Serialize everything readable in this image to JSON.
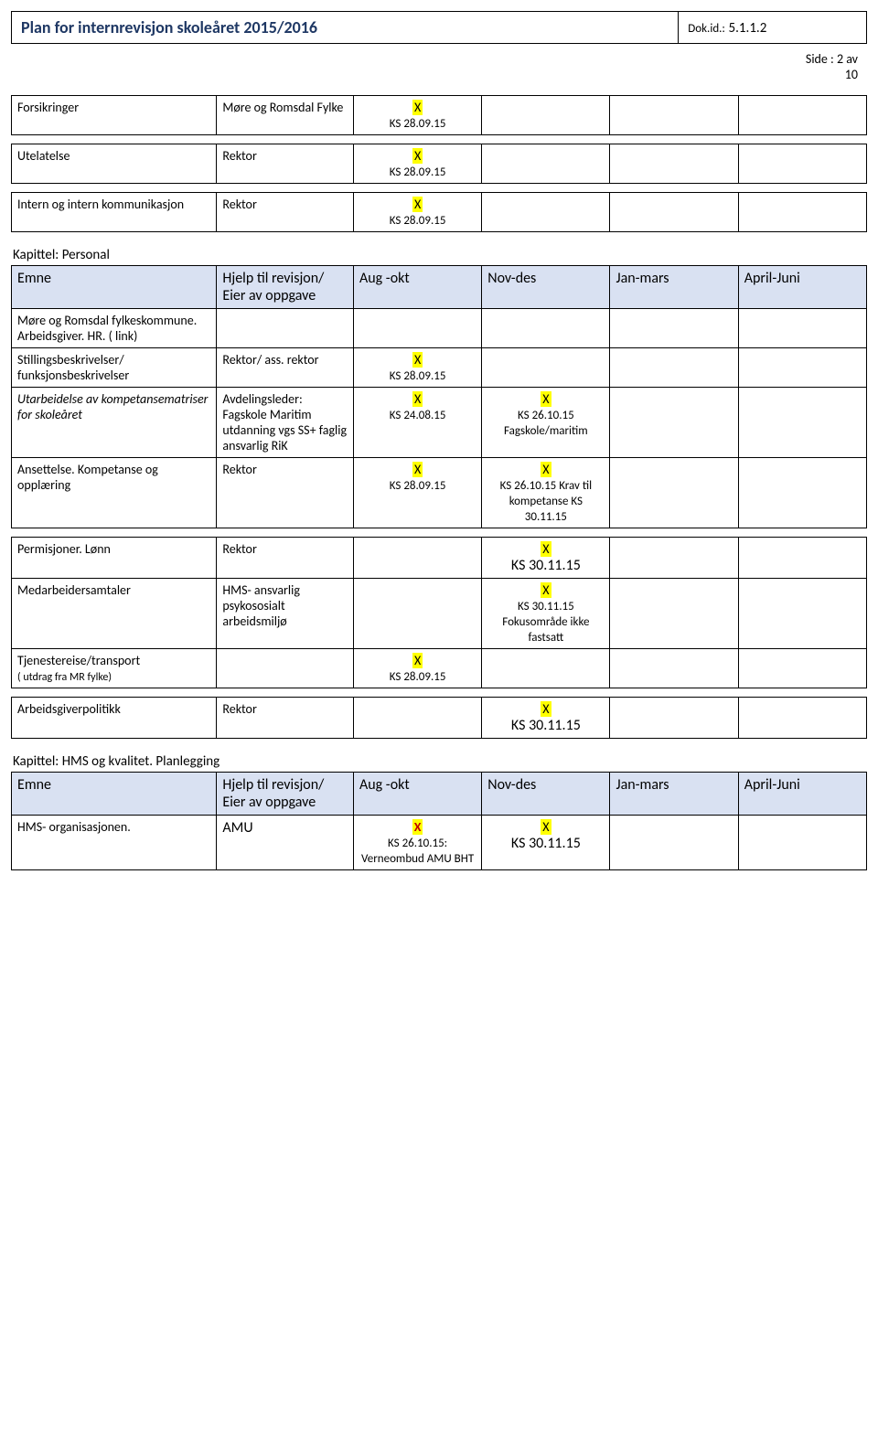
{
  "header": {
    "title": "Plan for internrevisjon skoleåret 2015/2016",
    "docid_label": "Dok.id.:",
    "docid_value": "5.1.1.2",
    "side_label": "Side",
    "side_value": ": 2 av",
    "side_total": "10"
  },
  "table1": {
    "rows": [
      {
        "emne": "Forsikringer",
        "hjelp": "Møre og Romsdal Fylke",
        "aug_mark": "X",
        "aug_sub": "KS 28.09.15"
      },
      {
        "emne": "Utelatelse",
        "hjelp": "Rektor",
        "aug_mark": "X",
        "aug_sub": "KS 28.09.15"
      },
      {
        "emne": "Intern og intern kommunikasjon",
        "hjelp": "Rektor",
        "aug_mark": "X",
        "aug_sub": "KS 28.09.15"
      }
    ]
  },
  "chapter2": {
    "title": "Kapittel: Personal"
  },
  "table2": {
    "headers": {
      "emne": "Emne",
      "hjelp": "Hjelp til revisjon/ Eier av oppgave",
      "aug": "Aug -okt",
      "nov": "Nov-des",
      "jan": "Jan-mars",
      "apr": "April-Juni"
    },
    "rows": [
      {
        "emne": "Møre og Romsdal fylkeskommune. Arbeidsgiver. HR. ( link)",
        "hjelp": ""
      },
      {
        "emne": "Stillingsbeskrivelser/ funksjonsbeskrivelser",
        "hjelp": "Rektor/ ass. rektor",
        "aug_mark": "X",
        "aug_sub": "KS 28.09.15"
      },
      {
        "emne": "Utarbeidelse av kompetansematriser for skoleåret",
        "emne_italic": true,
        "hjelp": "Avdelingsleder: Fagskole Maritim utdanning vgs SS+ faglig ansvarlig RiK",
        "aug_mark": "X",
        "aug_sub": "KS 24.08.15",
        "nov_mark": "X",
        "nov_sub": "KS 26.10.15 Fagskole/maritim"
      },
      {
        "emne": "Ansettelse. Kompetanse og opplæring",
        "hjelp": "Rektor",
        "aug_mark": "X",
        "aug_sub": "KS 28.09.15",
        "nov_mark": "X",
        "nov_sub": "KS 26.10.15 Krav til kompetanse KS 30.11.15"
      },
      {
        "emne": "Permisjoner. Lønn",
        "hjelp": "Rektor",
        "nov_mark": "X",
        "nov_sub": "KS 30.11.15",
        "nov_sub_big": true
      },
      {
        "emne": "Medarbeidersamtaler",
        "hjelp": "HMS- ansvarlig psykososialt arbeidsmiljø",
        "nov_mark": "X",
        "nov_sub": "KS 30.11.15 Fokusområde ikke fastsatt"
      },
      {
        "emne": "Tjenestereise/transport",
        "emne_sub": "( utdrag fra MR fylke)",
        "hjelp": "",
        "aug_mark": "X",
        "aug_sub": "KS 28.09.15"
      },
      {
        "emne": "Arbeidsgiverpolitikk",
        "hjelp": "Rektor",
        "nov_mark": "X",
        "nov_sub": "KS 30.11.15",
        "nov_sub_big": true
      }
    ]
  },
  "chapter3": {
    "title": "Kapittel: HMS og kvalitet. Planlegging"
  },
  "table3": {
    "headers": {
      "emne": "Emne",
      "hjelp": "Hjelp til revisjon/ Eier av oppgave",
      "aug": "Aug -okt",
      "nov": "Nov-des",
      "jan": "Jan-mars",
      "apr": "April-Juni"
    },
    "rows": [
      {
        "emne": "HMS- organisasjonen.",
        "hjelp": "AMU",
        "aug_mark": "X",
        "aug_mark_red": true,
        "aug_sub": "KS 26.10.15: Verneombud AMU BHT",
        "nov_mark": "X",
        "nov_sub": "KS 30.11.15",
        "nov_sub_big": true
      }
    ]
  },
  "colors": {
    "header_title": "#1f3864",
    "th_bg": "#d9e1f2",
    "highlight": "#ffff00",
    "red": "#c00000"
  }
}
